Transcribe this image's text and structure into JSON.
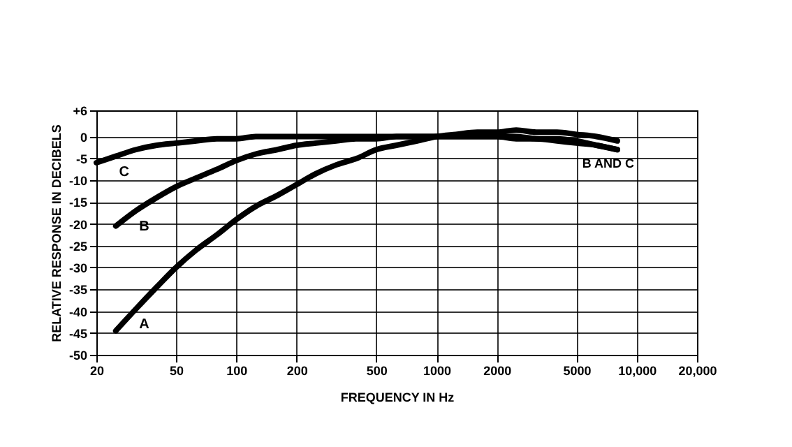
{
  "chart_data": {
    "type": "line",
    "xlabel": "FREQUENCY IN Hz",
    "ylabel": "RELATIVE RESPONSE IN DECIBELS",
    "log": "x",
    "xlim": [
      20,
      20000
    ],
    "xticks": [
      20,
      50,
      100,
      200,
      500,
      1000,
      2000,
      5000,
      {
        "value": 10000,
        "label": "10,000"
      },
      {
        "value": 20000,
        "label": "20,000"
      }
    ],
    "ylim": [
      -50,
      6
    ],
    "yticks": [
      -50,
      -45,
      -40,
      -35,
      -30,
      -25,
      -20,
      -15,
      -10,
      -5,
      0,
      {
        "value": 6,
        "label": "+6"
      }
    ],
    "grid": true,
    "legend": false,
    "marker": "none",
    "line_style": "solid",
    "series": [
      {
        "name": "A",
        "color": "#000000",
        "x": [
          25,
          31.5,
          40,
          50,
          63,
          80,
          100,
          125,
          160,
          200,
          250,
          315,
          400,
          500,
          630,
          800,
          1000,
          1250,
          1600,
          2000,
          2500,
          3150,
          4000,
          5000,
          6300,
          8000
        ],
        "values": [
          -44.5,
          -39.5,
          -34.5,
          -30,
          -26,
          -22.5,
          -19,
          -16,
          -13.5,
          -11,
          -8.5,
          -6.5,
          -5,
          -3,
          -2,
          -1,
          0,
          0.5,
          1,
          1,
          1.5,
          1,
          1,
          0.5,
          0,
          -1
        ]
      },
      {
        "name": "B",
        "color": "#000000",
        "x": [
          25,
          31.5,
          40,
          50,
          63,
          80,
          100,
          125,
          160,
          200,
          250,
          315,
          400,
          500,
          630,
          800,
          1000,
          1250,
          1600,
          2000,
          2500,
          3150,
          4000,
          5000,
          6300,
          8000
        ],
        "values": [
          -20.5,
          -17,
          -14,
          -11.5,
          -9.5,
          -7.5,
          -5.5,
          -4,
          -3,
          -2,
          -1.5,
          -1,
          -0.5,
          -0.5,
          0,
          0,
          0,
          0,
          0,
          0,
          0,
          -0.5,
          -0.5,
          -1,
          -2,
          -3
        ]
      },
      {
        "name": "C",
        "color": "#000000",
        "x": [
          20,
          25,
          31.5,
          40,
          50,
          63,
          80,
          100,
          125,
          160,
          200,
          500,
          1000,
          2000,
          2500,
          3150,
          4000,
          5000,
          6300,
          8000
        ],
        "values": [
          -6,
          -4.5,
          -3,
          -2,
          -1.5,
          -1,
          -0.5,
          -0.5,
          0,
          0,
          0,
          0,
          0,
          0,
          -0.5,
          -0.5,
          -1,
          -1.5,
          -2,
          -3
        ]
      }
    ],
    "annotations": [
      "B AND C"
    ]
  }
}
